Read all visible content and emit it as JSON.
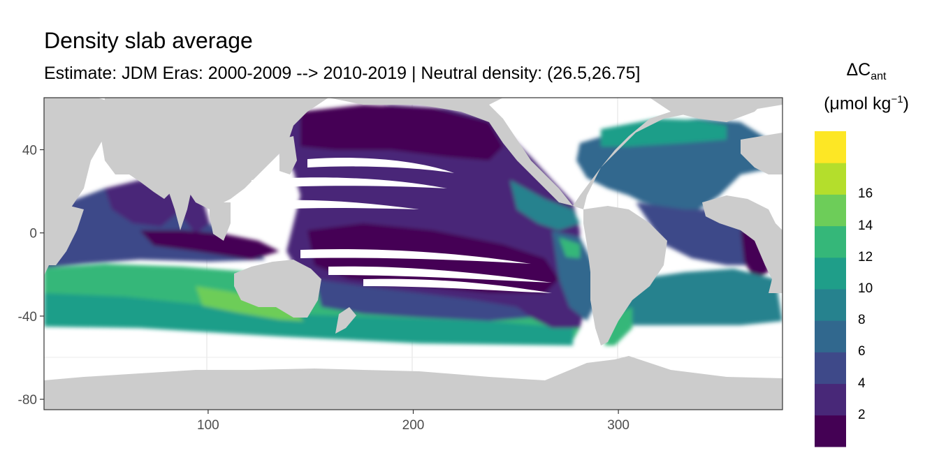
{
  "title": "Density slab average",
  "subtitle": "Estimate: JDM Eras: 2000-2009 --> 2010-2019 | Neutral density: (26.5,26.75]",
  "legend": {
    "symbol": "ΔC",
    "subscript": "ant",
    "unit_main": "(μmol kg",
    "unit_sup": "−1",
    "unit_close": ")",
    "tick_labels": [
      "2",
      "4",
      "6",
      "8",
      "10",
      "12",
      "14",
      "16"
    ],
    "bins": [
      {
        "range": [
          0,
          2
        ],
        "color": "#440154"
      },
      {
        "range": [
          2,
          4
        ],
        "color": "#482878"
      },
      {
        "range": [
          4,
          6
        ],
        "color": "#3e4989"
      },
      {
        "range": [
          6,
          8
        ],
        "color": "#31688e"
      },
      {
        "range": [
          8,
          10
        ],
        "color": "#26828e"
      },
      {
        "range": [
          10,
          12
        ],
        "color": "#1f9e89"
      },
      {
        "range": [
          12,
          14
        ],
        "color": "#35b779"
      },
      {
        "range": [
          14,
          16
        ],
        "color": "#6dcd59"
      },
      {
        "range": [
          16,
          18
        ],
        "color": "#b4de2c"
      },
      {
        "range": [
          18,
          20
        ],
        "color": "#fde725"
      }
    ]
  },
  "axes": {
    "x_ticks": [
      100,
      200,
      300
    ],
    "y_ticks": [
      40,
      0,
      -40,
      -80
    ],
    "x_range": [
      20,
      380
    ],
    "y_range": [
      -85,
      65
    ]
  },
  "colors": {
    "land": "#cccccc",
    "no_data": "#ffffff",
    "grid": "#ebebeb",
    "frame": "#333333"
  }
}
